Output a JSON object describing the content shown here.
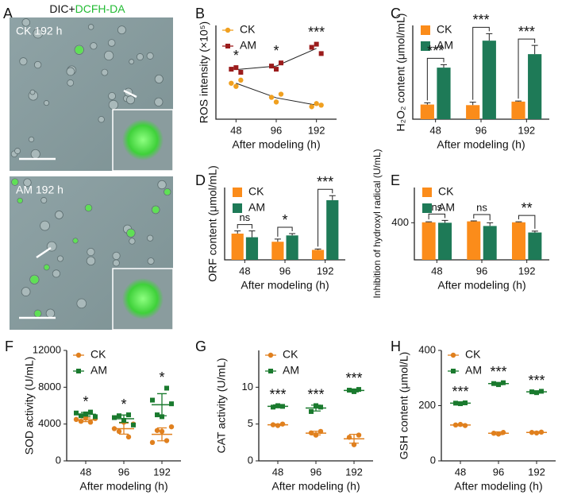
{
  "panel_a": {
    "label": "A",
    "title_parts": [
      "DIC+",
      "DCFH-DA"
    ],
    "images": [
      {
        "label": "CK 192 h"
      },
      {
        "label": "AM 192 h"
      }
    ]
  },
  "chart_data": [
    {
      "type": "dotline",
      "panel": "B",
      "y_label": "ROS intensity (×10⁵)",
      "x_label": "After modeling (h)",
      "categories": [
        "48",
        "96",
        "192"
      ],
      "ylim": [
        0,
        6
      ],
      "series": [
        {
          "name": "CK",
          "color": "#f0a020",
          "marker": "circle",
          "values": [
            [
              2.3,
              2.1,
              2.5
            ],
            [
              1.4,
              1.1,
              1.6
            ],
            [
              0.8,
              1.0,
              0.9
            ]
          ],
          "means": [
            2.3,
            1.37,
            0.9
          ]
        },
        {
          "name": "AM",
          "color": "#9b1c1c",
          "marker": "square",
          "values": [
            [
              3.2,
              3.3,
              3.0
            ],
            [
              3.4,
              3.2,
              3.6
            ],
            [
              4.6,
              4.8,
              4.2
            ]
          ],
          "means": [
            3.17,
            3.4,
            4.53
          ]
        }
      ],
      "annotations": [
        "*",
        "*",
        "***"
      ]
    },
    {
      "type": "bar",
      "panel": "C",
      "y_label": "H₂O₂ content (μmol/mL)",
      "x_label": "After modeling (h)",
      "categories": [
        "48",
        "96",
        "192"
      ],
      "ylim": [
        0,
        16
      ],
      "series": [
        {
          "name": "CK",
          "color": "#fb8c1a",
          "values": [
            2.5,
            2.4,
            3.0
          ],
          "errors": [
            0.3,
            0.5,
            0.1
          ]
        },
        {
          "name": "AM",
          "color": "#1e7a57",
          "values": [
            8.8,
            13.4,
            11.1
          ],
          "errors": [
            0.5,
            1.2,
            1.5
          ]
        }
      ],
      "annotations": [
        "***",
        "***",
        "***"
      ]
    },
    {
      "type": "bar",
      "panel": "D",
      "y_label": "ORF content (μmol/mL)",
      "x_label": "After modeling (h)",
      "categories": [
        "48",
        "96",
        "192"
      ],
      "ylim": [
        0,
        8
      ],
      "series": [
        {
          "name": "CK",
          "color": "#fb8c1a",
          "values": [
            2.9,
            2.0,
            1.1
          ],
          "errors": [
            0.3,
            0.3,
            0.1
          ]
        },
        {
          "name": "AM",
          "color": "#1e7a57",
          "values": [
            2.5,
            2.7,
            6.6
          ],
          "errors": [
            0.7,
            0.2,
            0.5
          ]
        }
      ],
      "annotations": [
        "ns",
        "*",
        "***"
      ]
    },
    {
      "type": "bar",
      "panel": "E",
      "y_label": "Inhibition of hydroxyl radical (U/mL)",
      "x_label": "After modeling (h)",
      "categories": [
        "48",
        "96",
        "192"
      ],
      "ylim": [
        0,
        780
      ],
      "yticks": [
        400
      ],
      "series": [
        {
          "name": "CK",
          "color": "#fb8c1a",
          "values": [
            405,
            415,
            405
          ],
          "errors": [
            5,
            5,
            5
          ]
        },
        {
          "name": "AM",
          "color": "#1e7a57",
          "values": [
            400,
            365,
            295
          ],
          "errors": [
            25,
            35,
            15
          ]
        }
      ],
      "annotations": [
        "ns",
        "ns",
        "**"
      ]
    },
    {
      "type": "dotplot",
      "panel": "F",
      "y_label": "SOD activity (U/mL)",
      "x_label": "After modeling (h)",
      "categories": [
        "48",
        "96",
        "192"
      ],
      "ylim": [
        0,
        12000
      ],
      "yticks": [
        0,
        4000,
        8000,
        12000
      ],
      "series": [
        {
          "name": "CK",
          "color": "#e0801e",
          "marker": "circle",
          "values": [
            [
              4500,
              4300,
              4700,
              4200,
              4600
            ],
            [
              3500,
              3200,
              4200,
              2600,
              4000
            ],
            [
              2000,
              3300,
              3200,
              2200,
              3700
            ]
          ],
          "means": [
            4460,
            3500,
            2880
          ],
          "errors": [
            200,
            600,
            700
          ]
        },
        {
          "name": "AM",
          "color": "#1a7a2e",
          "marker": "square",
          "values": [
            [
              5200,
              4900,
              5100,
              5300,
              4800
            ],
            [
              4700,
              4900,
              4400,
              5000,
              3900
            ],
            [
              6600,
              5000,
              4800,
              7900,
              6200
            ]
          ],
          "means": [
            5060,
            4580,
            6100
          ],
          "errors": [
            200,
            400,
            1200
          ]
        }
      ],
      "annotations": [
        "*",
        "*",
        "*"
      ]
    },
    {
      "type": "dotplot",
      "panel": "G",
      "y_label": "CAT activity (U/mL)",
      "x_label": "After modeling (h)",
      "categories": [
        "48",
        "96",
        "192"
      ],
      "ylim": [
        0,
        15
      ],
      "yticks": [
        0,
        5,
        10
      ],
      "series": [
        {
          "name": "CK",
          "color": "#e0801e",
          "marker": "circle",
          "values": [
            [
              4.9,
              4.8,
              5.0
            ],
            [
              3.8,
              3.5,
              4.0
            ],
            [
              3.2,
              2.2,
              3.5
            ]
          ],
          "means": [
            4.9,
            3.77,
            3.0
          ],
          "errors": [
            0.1,
            0.25,
            0.6
          ]
        },
        {
          "name": "AM",
          "color": "#1a7a2e",
          "marker": "square",
          "values": [
            [
              7.3,
              7.5,
              7.4
            ],
            [
              6.7,
              7.5,
              7.3
            ],
            [
              9.6,
              9.4,
              9.7
            ]
          ],
          "means": [
            7.4,
            7.17,
            9.57
          ],
          "errors": [
            0.2,
            0.4,
            0.2
          ]
        }
      ],
      "annotations": [
        "***",
        "***",
        "***"
      ]
    },
    {
      "type": "dotplot",
      "panel": "H",
      "y_label": "GSH content (μmol/L)",
      "x_label": "After modeling (h)",
      "categories": [
        "48",
        "96",
        "192"
      ],
      "ylim": [
        0,
        400
      ],
      "yticks": [
        0,
        200,
        400
      ],
      "series": [
        {
          "name": "CK",
          "color": "#e0801e",
          "marker": "circle",
          "values": [
            [
              130,
              132,
              128
            ],
            [
              100,
              97,
              103
            ],
            [
              103,
              101,
              104
            ]
          ],
          "means": [
            130,
            100,
            103
          ],
          "errors": [
            3,
            5,
            3
          ]
        },
        {
          "name": "AM",
          "color": "#1a7a2e",
          "marker": "square",
          "values": [
            [
              209,
              207,
              210
            ],
            [
              280,
              276,
              283
            ],
            [
              250,
              247,
              252
            ]
          ],
          "means": [
            209,
            280,
            250
          ],
          "errors": [
            3,
            4,
            3
          ]
        }
      ],
      "annotations": [
        "***",
        "***",
        "***"
      ]
    }
  ]
}
